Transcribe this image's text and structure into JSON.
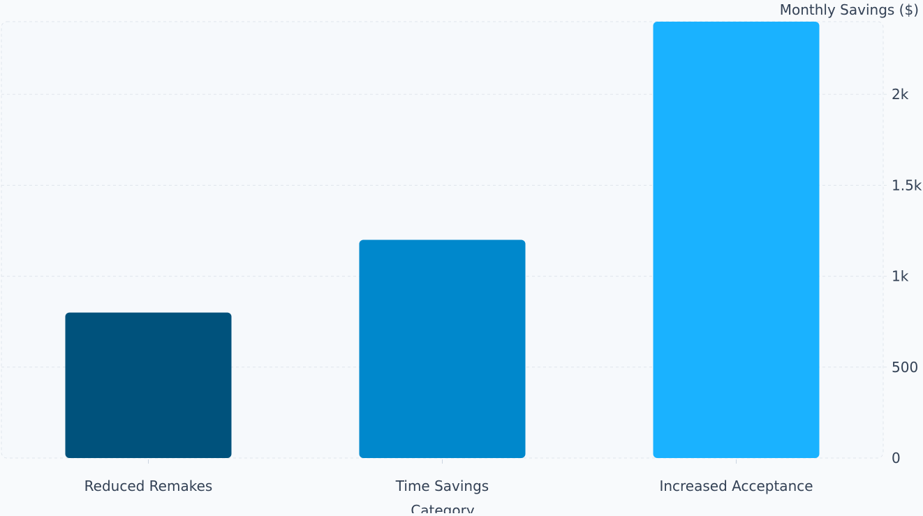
{
  "chart_data": {
    "type": "bar",
    "categories": [
      "Reduced Remakes",
      "Time Savings",
      "Increased Acceptance"
    ],
    "values": [
      800,
      1200,
      2400
    ],
    "title": "",
    "xlabel": "Category",
    "ylabel": "Monthly Savings ($)",
    "ylim": [
      0,
      2400
    ],
    "yticks": [
      0,
      500,
      1000,
      1500,
      2000
    ],
    "ytick_labels": [
      "0",
      "500",
      "1k",
      "1.5k",
      "2k"
    ],
    "y_axis_side": "right",
    "grid": true,
    "legend": "none",
    "colors": [
      "#00527c",
      "#0088cc",
      "#1ab2ff"
    ]
  }
}
